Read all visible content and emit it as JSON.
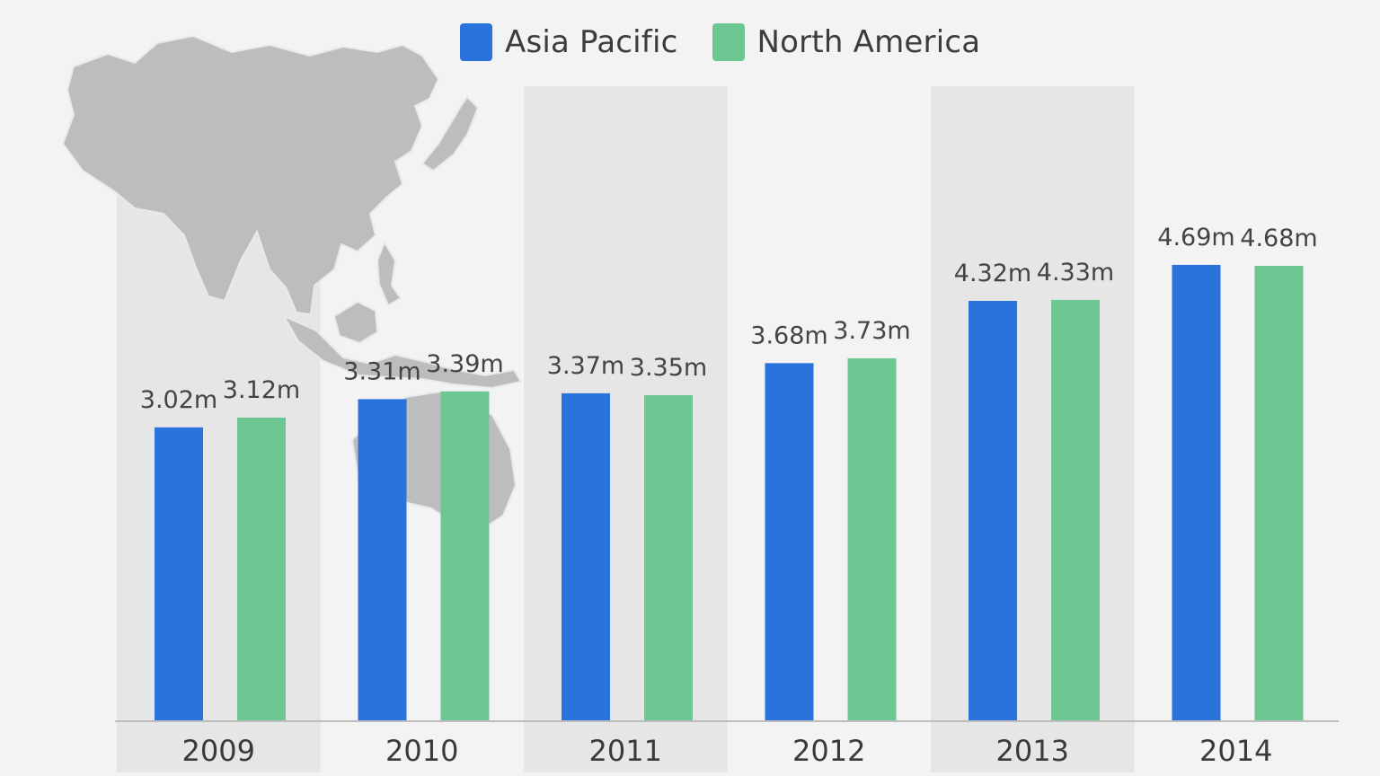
{
  "legend": [
    {
      "label": "Asia Pacific",
      "color": "#2a72dc"
    },
    {
      "label": "North America",
      "color": "#6cc792"
    }
  ],
  "background_image": "asia-pacific-map",
  "chart_data": {
    "type": "bar",
    "title": "",
    "xlabel": "",
    "ylabel": "",
    "categories": [
      "2009",
      "2010",
      "2011",
      "2012",
      "2013",
      "2014"
    ],
    "series": [
      {
        "name": "Asia Pacific",
        "color": "#2a72dc",
        "values": [
          3.02,
          3.31,
          3.37,
          3.68,
          4.32,
          4.69
        ],
        "labels": [
          "3.02m",
          "3.31m",
          "3.37m",
          "3.68m",
          "4.32m",
          "4.69m"
        ]
      },
      {
        "name": "North America",
        "color": "#6cc792",
        "values": [
          3.12,
          3.39,
          3.35,
          3.73,
          4.33,
          4.68
        ],
        "labels": [
          "3.12m",
          "3.39m",
          "3.35m",
          "3.73m",
          "4.33m",
          "4.68m"
        ]
      }
    ],
    "ylim": [
      0,
      4.8
    ],
    "grid": false,
    "legend_position": "top-center",
    "alternating_column_shading": true
  }
}
